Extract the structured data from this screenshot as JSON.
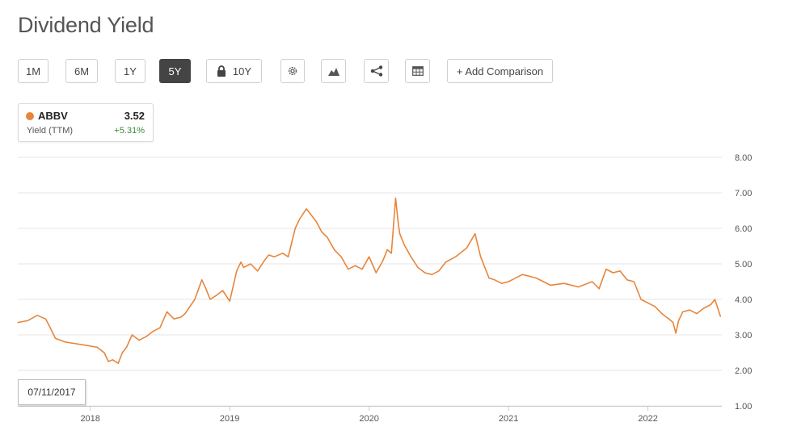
{
  "page": {
    "title": "Dividend Yield"
  },
  "toolbar": {
    "range_1m": "1M",
    "range_6m": "6M",
    "range_1y": "1Y",
    "range_5y": "5Y",
    "range_10y": "10Y",
    "active_range": "5Y",
    "add_comparison": "+ Add Comparison",
    "icons": [
      "lock-icon",
      "gear-icon",
      "mountain-chart-icon",
      "share-icon",
      "table-icon"
    ]
  },
  "legend": {
    "symbol": "ABBV",
    "value": "3.52",
    "metric": "Yield (TTM)",
    "change": "+5.31%",
    "color": "#e8853a",
    "change_color": "#3a8a3a"
  },
  "tooltip": {
    "date": "07/11/2017"
  },
  "chart_data": {
    "type": "line",
    "title": "",
    "xlabel": "",
    "ylabel": "",
    "ylim": [
      1.0,
      8.0
    ],
    "y_ticks": [
      "1.00",
      "2.00",
      "3.00",
      "4.00",
      "5.00",
      "6.00",
      "7.00",
      "8.00"
    ],
    "x_ticks": [
      "2018",
      "2019",
      "2020",
      "2021",
      "2022"
    ],
    "x_tick_values": [
      2018.0,
      2019.0,
      2020.0,
      2021.0,
      2022.0
    ],
    "xlim": [
      2017.48,
      2022.53
    ],
    "grid": true,
    "y_axis_side": "right",
    "series": [
      {
        "name": "ABBV",
        "color": "#e8853a",
        "x": [
          2017.48,
          2017.55,
          2017.62,
          2017.68,
          2017.7,
          2017.75,
          2017.82,
          2017.9,
          2017.98,
          2018.05,
          2018.1,
          2018.13,
          2018.16,
          2018.2,
          2018.23,
          2018.26,
          2018.3,
          2018.35,
          2018.4,
          2018.45,
          2018.5,
          2018.55,
          2018.6,
          2018.65,
          2018.68,
          2018.75,
          2018.8,
          2018.83,
          2018.86,
          2018.9,
          2018.95,
          2019.0,
          2019.05,
          2019.08,
          2019.1,
          2019.15,
          2019.2,
          2019.25,
          2019.28,
          2019.32,
          2019.38,
          2019.42,
          2019.47,
          2019.5,
          2019.55,
          2019.58,
          2019.62,
          2019.66,
          2019.7,
          2019.75,
          2019.8,
          2019.85,
          2019.9,
          2019.95,
          2020.0,
          2020.05,
          2020.1,
          2020.13,
          2020.16,
          2020.19,
          2020.21,
          2020.22,
          2020.25,
          2020.3,
          2020.35,
          2020.4,
          2020.45,
          2020.5,
          2020.55,
          2020.62,
          2020.7,
          2020.76,
          2020.8,
          2020.83,
          2020.86,
          2020.9,
          2020.95,
          2021.0,
          2021.05,
          2021.1,
          2021.15,
          2021.2,
          2021.3,
          2021.4,
          2021.5,
          2021.6,
          2021.65,
          2021.7,
          2021.75,
          2021.8,
          2021.85,
          2021.9,
          2021.95,
          2022.0,
          2022.05,
          2022.1,
          2022.15,
          2022.18,
          2022.2,
          2022.22,
          2022.25,
          2022.3,
          2022.35,
          2022.4,
          2022.45,
          2022.48,
          2022.52
        ],
        "y": [
          3.35,
          3.4,
          3.55,
          3.45,
          3.3,
          2.9,
          2.8,
          2.75,
          2.7,
          2.65,
          2.5,
          2.25,
          2.3,
          2.2,
          2.5,
          2.65,
          3.0,
          2.85,
          2.95,
          3.1,
          3.2,
          3.65,
          3.45,
          3.5,
          3.6,
          4.0,
          4.55,
          4.3,
          4.0,
          4.1,
          4.25,
          3.95,
          4.8,
          5.05,
          4.9,
          5.0,
          4.8,
          5.1,
          5.25,
          5.2,
          5.3,
          5.2,
          6.0,
          6.25,
          6.55,
          6.4,
          6.2,
          5.9,
          5.75,
          5.4,
          5.2,
          4.85,
          4.95,
          4.85,
          5.2,
          4.75,
          5.1,
          5.4,
          5.3,
          6.85,
          6.1,
          5.85,
          5.55,
          5.2,
          4.9,
          4.75,
          4.7,
          4.8,
          5.05,
          5.2,
          5.45,
          5.85,
          5.2,
          4.9,
          4.6,
          4.55,
          4.45,
          4.5,
          4.6,
          4.7,
          4.65,
          4.6,
          4.4,
          4.45,
          4.35,
          4.5,
          4.3,
          4.85,
          4.75,
          4.8,
          4.55,
          4.5,
          4.0,
          3.9,
          3.8,
          3.6,
          3.45,
          3.35,
          3.05,
          3.4,
          3.65,
          3.7,
          3.6,
          3.75,
          3.85,
          4.0,
          3.52
        ]
      }
    ]
  }
}
